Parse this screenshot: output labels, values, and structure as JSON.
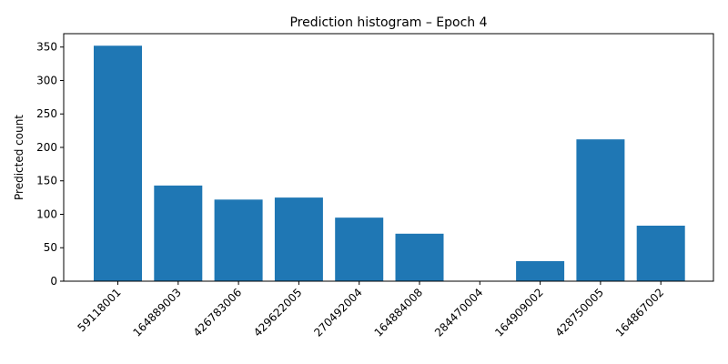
{
  "chart_data": {
    "type": "bar",
    "title": "Prediction histogram – Epoch 4",
    "xlabel": "",
    "ylabel": "Predicted count",
    "categories": [
      "59118001",
      "164889003",
      "426783006",
      "429622005",
      "270492004",
      "164884008",
      "284470004",
      "164909002",
      "428750005",
      "164867002"
    ],
    "values": [
      352,
      143,
      122,
      125,
      95,
      71,
      0,
      30,
      212,
      83
    ],
    "ylim": [
      0,
      370
    ],
    "yticks": [
      0,
      50,
      100,
      150,
      200,
      250,
      300,
      350
    ],
    "bar_color": "#1f77b4",
    "grid": false,
    "legend": "none"
  }
}
